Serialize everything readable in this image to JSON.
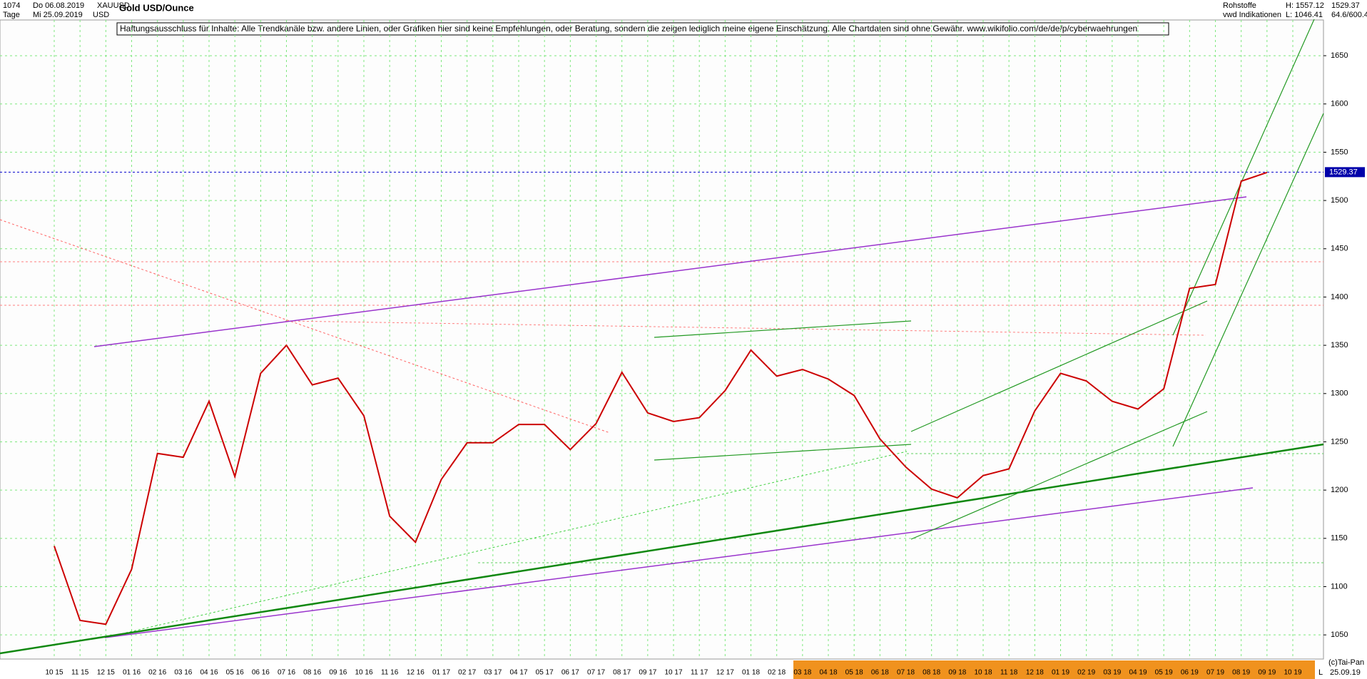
{
  "chart_data": {
    "type": "line",
    "title": "Gold USD/Ounce",
    "header": {
      "count": "1074",
      "from_date": "Do 06.08.2019",
      "symbol": "XAUUSD",
      "period": "Tage",
      "to_date": "Mi 25.09.2019",
      "currency": "USD",
      "disclaimer": "Haftungsausschluss für Inhalte: Alle Trendkanäle bzw. andere Linien, oder Grafiken hier sind keine Empfehlungen, oder Beratung, sondern die zeigen lediglich meine eigene Einschätzung. Alle Chartdaten sind ohne Gewähr.  www.wikifolio.com/de/de/p/cyberwaehrungen",
      "group": "Rohstoffe",
      "high": "H: 1557.12",
      "source": "vwd Indikationen",
      "low": "L: 1046.41",
      "scale_info": "64.6/600.4",
      "copyright": "(c)Tai-Pan",
      "last_marker": "L",
      "last_date": "25.09.19"
    },
    "last": 1529.37,
    "categories": [
      "10 15",
      "11 15",
      "12 15",
      "01 16",
      "02 16",
      "03 16",
      "04 16",
      "05 16",
      "06 16",
      "07 16",
      "08 16",
      "09 16",
      "10 16",
      "11 16",
      "12 16",
      "01 17",
      "02 17",
      "03 17",
      "04 17",
      "05 17",
      "06 17",
      "07 17",
      "08 17",
      "09 17",
      "10 17",
      "11 17",
      "12 17",
      "01 18",
      "02 18",
      "03 18",
      "04 18",
      "05 18",
      "06 18",
      "07 18",
      "08 18",
      "09 18",
      "10 18",
      "11 18",
      "12 18",
      "01 19",
      "02 19",
      "03 19",
      "04 19",
      "05 19",
      "06 19",
      "07 19",
      "08 19",
      "09 19",
      "10 19"
    ],
    "values": [
      1142,
      1065,
      1061,
      1118,
      1238,
      1234,
      1292,
      1214,
      1321,
      1350,
      1309,
      1316,
      1277,
      1173,
      1146,
      1211,
      1249,
      1249,
      1268,
      1268,
      1242,
      1269,
      1322,
      1280,
      1271,
      1275,
      1303,
      1345,
      1318,
      1325,
      1315,
      1298,
      1253,
      1224,
      1201,
      1192,
      1215,
      1222,
      1282,
      1321,
      1313,
      1292,
      1284,
      1305,
      1409,
      1413,
      1520,
      1529,
      null
    ],
    "color": "#cc0000",
    "ylim": [
      1025,
      1687
    ],
    "yticks": [
      1050,
      1100,
      1150,
      1200,
      1250,
      1300,
      1350,
      1400,
      1450,
      1500,
      1550,
      1600,
      1650
    ],
    "grid": true
  }
}
